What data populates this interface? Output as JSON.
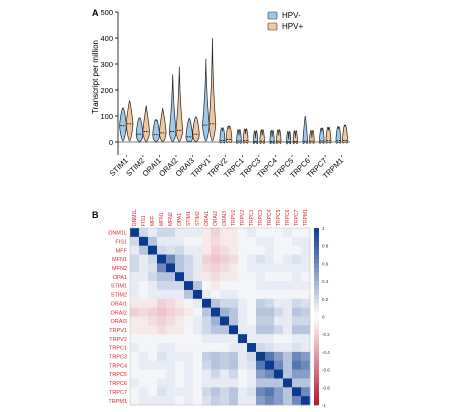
{
  "chart_data": [
    {
      "panel": "A",
      "type": "violin",
      "ylabel": "Transcript per million",
      "ylim": [
        -50,
        500
      ],
      "yticks": [
        0,
        100,
        200,
        300,
        400,
        500
      ],
      "categories": [
        "STIM1",
        "STIM2",
        "ORAI1",
        "ORAI2",
        "ORAI3",
        "TRPV1",
        "TRPV2",
        "TRPC1",
        "TRPC3",
        "TRPC4",
        "TRPC5",
        "TRPC6",
        "TRPC7",
        "TRPM1"
      ],
      "legend": {
        "placement": "top-right",
        "entries": [
          "HPV-",
          "HPV+"
        ]
      },
      "series": [
        {
          "name": "HPV-",
          "color": "#9ec9ea",
          "median": [
            63,
            30,
            28,
            40,
            20,
            65,
            6,
            4,
            2,
            2,
            1,
            3,
            4,
            5
          ],
          "max": [
            130,
            90,
            80,
            260,
            90,
            320,
            40,
            25,
            15,
            20,
            10,
            100,
            40,
            50
          ]
        },
        {
          "name": "HPV+",
          "color": "#f2c79d",
          "median": [
            70,
            40,
            35,
            45,
            30,
            70,
            10,
            5,
            3,
            3,
            2,
            4,
            5,
            6
          ],
          "max": [
            160,
            140,
            130,
            290,
            95,
            400,
            50,
            30,
            25,
            25,
            15,
            15,
            45,
            60
          ]
        }
      ]
    },
    {
      "panel": "B",
      "type": "heatmap",
      "labels": [
        "DNM1L",
        "FIS1",
        "MFF",
        "MFN1",
        "MFN2",
        "OPA1",
        "STIM1",
        "STIM2",
        "ORAI1",
        "ORAI2",
        "ORAI3",
        "TRPV1",
        "TRPV2",
        "TRPC1",
        "TRPC3",
        "TRPC4",
        "TRPC5",
        "TRPC6",
        "TRPC7",
        "TRPM1"
      ],
      "colorbar": {
        "min": -1,
        "max": 1,
        "ticks": [
          "1",
          "0.8",
          "0.6",
          "0.4",
          "0.2",
          "0",
          "-0.2",
          "-0.4",
          "-0.6",
          "-0.8",
          "-1"
        ],
        "pos_color": "#0b3b8f",
        "neg_color": "#b2182b"
      },
      "matrix": [
        [
          1,
          0.2,
          0.1,
          0.2,
          0.2,
          0.1,
          0.1,
          0.1,
          -0.1,
          -0.2,
          -0.1,
          -0.1,
          0.05,
          0.1,
          0.05,
          0.05,
          0.05,
          0.1,
          0.05,
          0.05
        ],
        [
          0.2,
          1,
          0.3,
          0.1,
          0.1,
          0.1,
          0.05,
          0.05,
          -0.1,
          -0.15,
          -0.1,
          -0.1,
          0.05,
          0.05,
          0.1,
          0.1,
          0.05,
          0.05,
          0.1,
          0.1
        ],
        [
          0.1,
          0.3,
          1,
          0.2,
          0.15,
          0.2,
          0.1,
          0.1,
          -0.1,
          -0.2,
          -0.15,
          -0.1,
          0.05,
          0.05,
          0.05,
          0.1,
          0.05,
          0.05,
          0.05,
          0.1
        ],
        [
          0.2,
          0.1,
          0.2,
          1,
          0.6,
          0.3,
          0.2,
          0.1,
          -0.2,
          -0.25,
          -0.2,
          -0.15,
          0.05,
          0.1,
          0.15,
          0.1,
          0.05,
          0.1,
          0.15,
          0.1
        ],
        [
          0.2,
          0.1,
          0.15,
          0.6,
          1,
          0.3,
          0.2,
          0.1,
          -0.15,
          -0.2,
          -0.15,
          -0.1,
          0.05,
          0.1,
          0.1,
          0.1,
          0.1,
          0.1,
          0.1,
          0.1
        ],
        [
          0.1,
          0.1,
          0.2,
          0.3,
          0.3,
          1,
          0.2,
          0.1,
          -0.1,
          -0.15,
          -0.1,
          -0.1,
          0.05,
          0.05,
          0.1,
          0.05,
          0.05,
          0.05,
          0.1,
          0.05
        ],
        [
          0.1,
          0.05,
          0.1,
          0.2,
          0.2,
          0.2,
          1,
          0.3,
          0.05,
          -0.1,
          0.05,
          0.05,
          0.05,
          0.05,
          0.1,
          0.1,
          0.1,
          0.1,
          0.1,
          0.1
        ],
        [
          0.1,
          0.05,
          0.1,
          0.1,
          0.1,
          0.1,
          0.3,
          1,
          0.1,
          0.05,
          0.1,
          0.1,
          0.05,
          0.05,
          0.05,
          0.05,
          0.05,
          0.05,
          0.05,
          0.05
        ],
        [
          -0.1,
          -0.1,
          -0.1,
          -0.2,
          -0.15,
          -0.1,
          0.05,
          0.1,
          1,
          0.3,
          0.2,
          0.2,
          0.1,
          0.05,
          0.25,
          0.2,
          0.1,
          0.1,
          0.2,
          0.15
        ],
        [
          -0.2,
          -0.15,
          -0.2,
          -0.25,
          -0.2,
          -0.15,
          -0.1,
          0.05,
          0.3,
          1,
          0.4,
          0.3,
          0.1,
          0.05,
          0.3,
          0.3,
          0.2,
          0.1,
          0.3,
          0.25
        ],
        [
          -0.1,
          -0.1,
          -0.15,
          -0.2,
          -0.15,
          -0.1,
          0.05,
          0.1,
          0.2,
          0.4,
          1,
          0.3,
          0.1,
          0.05,
          0.25,
          0.25,
          0.1,
          0.1,
          0.2,
          0.2
        ],
        [
          -0.1,
          -0.1,
          -0.1,
          -0.15,
          -0.1,
          -0.1,
          0.05,
          0.1,
          0.2,
          0.3,
          0.3,
          1,
          0.1,
          0.1,
          0.3,
          0.3,
          0.2,
          0.1,
          0.3,
          0.3
        ],
        [
          0.05,
          0.05,
          0.05,
          0.05,
          0.05,
          0.05,
          0.05,
          0.05,
          0.1,
          0.1,
          0.1,
          0.1,
          1,
          0.1,
          0.1,
          0.1,
          0.05,
          0.05,
          0.1,
          0.1
        ],
        [
          0.1,
          0.05,
          0.05,
          0.1,
          0.1,
          0.05,
          0.05,
          0.05,
          0.05,
          0.05,
          0.05,
          0.1,
          0.1,
          1,
          0.2,
          0.15,
          0.1,
          0.1,
          0.15,
          0.1
        ],
        [
          0.05,
          0.1,
          0.05,
          0.15,
          0.1,
          0.1,
          0.1,
          0.05,
          0.25,
          0.3,
          0.25,
          0.3,
          0.1,
          0.2,
          1,
          0.7,
          0.5,
          0.3,
          0.6,
          0.5
        ],
        [
          0.05,
          0.1,
          0.1,
          0.1,
          0.1,
          0.05,
          0.1,
          0.05,
          0.2,
          0.3,
          0.25,
          0.3,
          0.1,
          0.15,
          0.7,
          1,
          0.6,
          0.3,
          0.7,
          0.6
        ],
        [
          0.05,
          0.05,
          0.05,
          0.05,
          0.1,
          0.05,
          0.1,
          0.05,
          0.1,
          0.2,
          0.1,
          0.2,
          0.05,
          0.1,
          0.5,
          0.6,
          1,
          0.3,
          0.5,
          0.5
        ],
        [
          0.1,
          0.05,
          0.05,
          0.1,
          0.1,
          0.05,
          0.1,
          0.05,
          0.1,
          0.1,
          0.1,
          0.1,
          0.05,
          0.1,
          0.3,
          0.3,
          0.3,
          1,
          0.3,
          0.3
        ],
        [
          0.05,
          0.1,
          0.05,
          0.15,
          0.1,
          0.1,
          0.1,
          0.05,
          0.2,
          0.3,
          0.2,
          0.3,
          0.1,
          0.15,
          0.6,
          0.7,
          0.5,
          0.3,
          1,
          0.6
        ],
        [
          0.05,
          0.1,
          0.1,
          0.1,
          0.1,
          0.05,
          0.1,
          0.05,
          0.15,
          0.25,
          0.2,
          0.3,
          0.1,
          0.1,
          0.5,
          0.6,
          0.5,
          0.3,
          0.6,
          1
        ]
      ]
    }
  ]
}
